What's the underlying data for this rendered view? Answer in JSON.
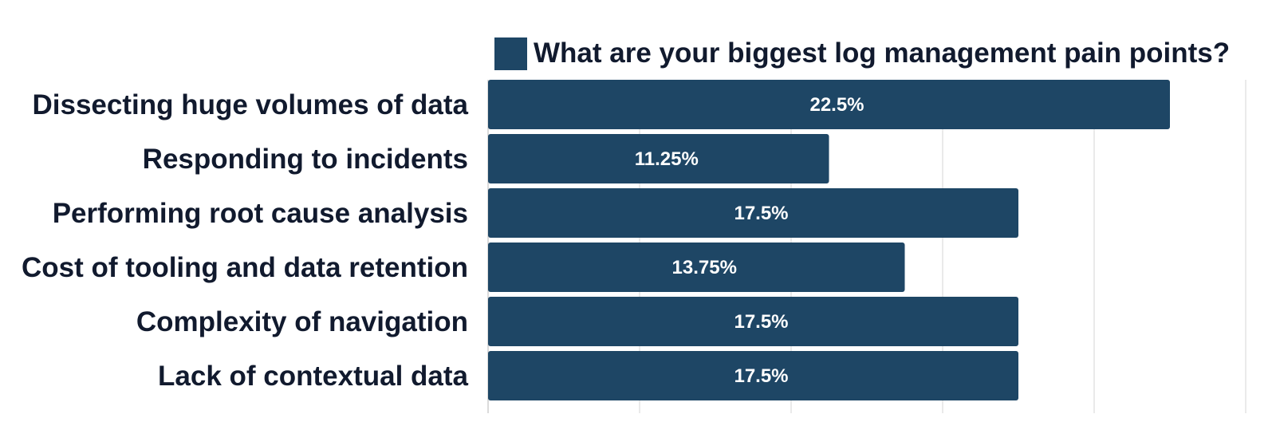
{
  "chart_data": {
    "type": "bar",
    "orientation": "horizontal",
    "categories": [
      "Dissecting huge volumes of data",
      "Responding to incidents",
      "Performing root cause analysis",
      "Cost of tooling and data retention",
      "Complexity of navigation",
      "Lack of contextual data"
    ],
    "series": [
      {
        "name": "What are your biggest log management pain points?",
        "values": [
          22.5,
          11.25,
          17.5,
          13.75,
          17.5,
          17.5
        ],
        "data_labels": [
          "22.5%",
          "11.25%",
          "17.5%",
          "13.75%",
          "17.5%",
          "17.5%"
        ]
      }
    ],
    "title": "",
    "xlabel": "",
    "ylabel": "",
    "xlim": [
      0,
      25
    ],
    "grid": true,
    "legend": "top",
    "colors": {
      "bar": "#1e4665",
      "grid": "#e4e4e4",
      "text": "#111a2e",
      "value_text": "#ffffff"
    }
  }
}
